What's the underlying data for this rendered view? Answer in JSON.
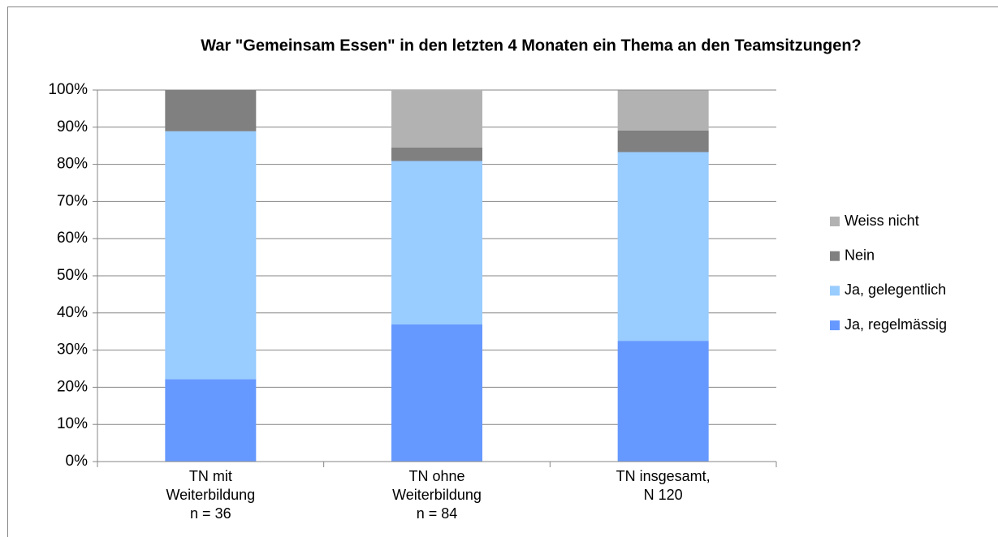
{
  "chart_data": {
    "type": "stacked_bar",
    "title": "War \"Gemeinsam Essen\" in den letzten 4 Monaten ein Thema an den Teamsitzungen?",
    "categories": [
      [
        "TN mit",
        "Weiterbildung",
        "n = 36"
      ],
      [
        "TN ohne",
        "Weiterbildung",
        "n = 84"
      ],
      [
        "TN insgesamt,",
        "N 120"
      ]
    ],
    "series": [
      {
        "name": "Ja, regelmässig",
        "color": "#6699ff",
        "values": [
          22.2,
          36.9,
          32.5
        ]
      },
      {
        "name": "Ja, gelegentlich",
        "color": "#99ccff",
        "values": [
          66.7,
          44.0,
          50.8
        ]
      },
      {
        "name": "Nein",
        "color": "#808080",
        "values": [
          11.1,
          3.6,
          5.8
        ]
      },
      {
        "name": "Weiss nicht",
        "color": "#b2b2b2",
        "values": [
          0,
          15.5,
          10.8
        ]
      }
    ],
    "ylim": [
      0,
      100
    ],
    "yticks": [
      {
        "value": 0,
        "label": "0%"
      },
      {
        "value": 10,
        "label": "10%"
      },
      {
        "value": 20,
        "label": "20%"
      },
      {
        "value": 30,
        "label": "30%"
      },
      {
        "value": 40,
        "label": "40%"
      },
      {
        "value": 50,
        "label": "50%"
      },
      {
        "value": 60,
        "label": "60%"
      },
      {
        "value": 70,
        "label": "70%"
      },
      {
        "value": 80,
        "label": "80%"
      },
      {
        "value": 90,
        "label": "90%"
      },
      {
        "value": 100,
        "label": "100%"
      }
    ],
    "grid": true,
    "legend": "right"
  }
}
